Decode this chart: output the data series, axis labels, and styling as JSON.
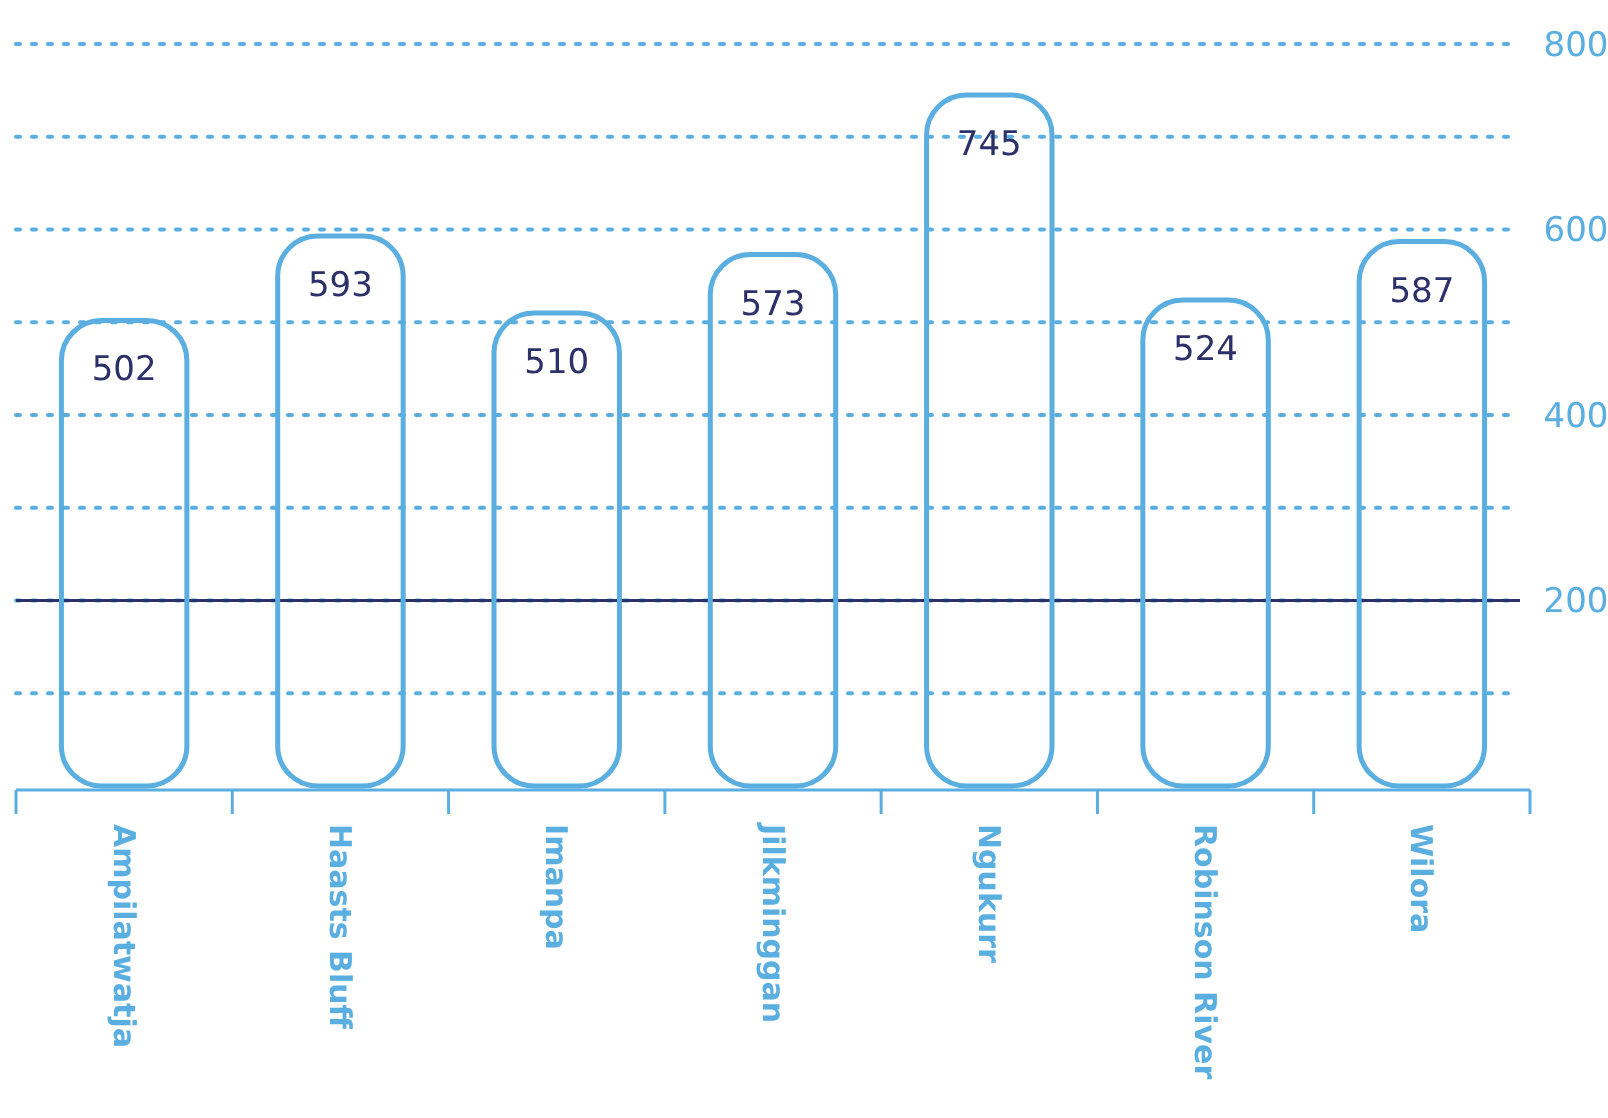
{
  "chart_data": {
    "type": "bar",
    "categories": [
      "Ampilatwatja",
      "Haasts Bluff",
      "Imanpa",
      "Jilkminggan",
      "Ngukurr",
      "Robinson River",
      "Wilora"
    ],
    "values": [
      502,
      593,
      510,
      573,
      745,
      524,
      587
    ],
    "color": "#5aaee0",
    "ylim": [
      0,
      800
    ],
    "yticks": [
      {
        "value": 100,
        "label": null
      },
      200,
      {
        "value": 300,
        "label": null
      },
      400,
      {
        "value": 500,
        "label": null
      },
      600,
      {
        "value": 700,
        "label": null
      },
      800
    ],
    "grid": "y",
    "data_labels": true,
    "ref_lines": [
      {
        "axis": "y",
        "value": 200,
        "color": "#2c3169"
      }
    ]
  }
}
